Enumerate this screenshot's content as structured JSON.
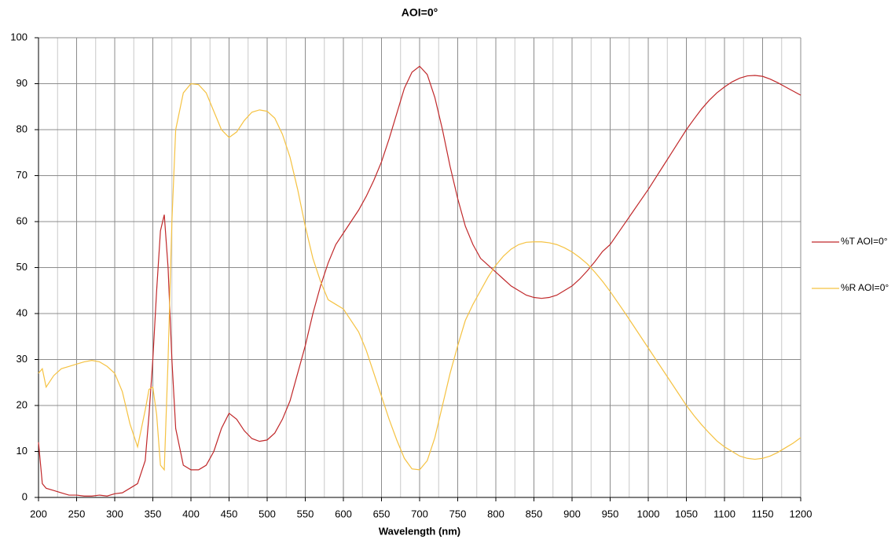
{
  "chart_data": {
    "type": "line",
    "title": "AOI=0°",
    "x_label": "Wavelength (nm)",
    "x": [
      200,
      205,
      210,
      220,
      230,
      240,
      250,
      260,
      270,
      280,
      290,
      300,
      310,
      320,
      330,
      340,
      345,
      350,
      355,
      360,
      365,
      370,
      375,
      380,
      390,
      400,
      410,
      420,
      430,
      440,
      450,
      460,
      470,
      480,
      490,
      500,
      510,
      520,
      530,
      540,
      550,
      560,
      570,
      580,
      590,
      600,
      610,
      620,
      630,
      640,
      650,
      660,
      670,
      680,
      690,
      700,
      710,
      720,
      730,
      740,
      750,
      760,
      770,
      780,
      790,
      800,
      810,
      820,
      830,
      840,
      850,
      860,
      870,
      880,
      890,
      900,
      910,
      920,
      930,
      940,
      950,
      960,
      970,
      980,
      990,
      1000,
      1010,
      1020,
      1030,
      1040,
      1050,
      1060,
      1070,
      1080,
      1090,
      1100,
      1110,
      1120,
      1130,
      1140,
      1150,
      1160,
      1170,
      1180,
      1190,
      1200
    ],
    "series": [
      {
        "name": "%T AOI=0°",
        "color": "#c0282a",
        "values": [
          12,
          3,
          2,
          1.5,
          1,
          0.5,
          0.5,
          0.3,
          0.3,
          0.5,
          0.3,
          0.8,
          1,
          2,
          3,
          8,
          18,
          30,
          45,
          58,
          61.5,
          50,
          30,
          15,
          7,
          6,
          6,
          7,
          10,
          15,
          18.3,
          17,
          14.5,
          12.8,
          12.2,
          12.5,
          14,
          17,
          21,
          27,
          33,
          40,
          46,
          51,
          55,
          57.5,
          60,
          62.5,
          65.5,
          69,
          73,
          78,
          83.5,
          89,
          92.5,
          93.8,
          92,
          87,
          80,
          72,
          65,
          59,
          55,
          52,
          50.5,
          49,
          47.5,
          46,
          45,
          44,
          43.5,
          43.3,
          43.5,
          44,
          45,
          46,
          47.5,
          49.3,
          51.3,
          53.5,
          55,
          57.4,
          59.8,
          62.2,
          64.6,
          67,
          69.6,
          72.2,
          74.8,
          77.4,
          80,
          82.3,
          84.5,
          86.4,
          88,
          89.3,
          90.4,
          91.2,
          91.7,
          91.8,
          91.6,
          91,
          90.2,
          89.3,
          88.4,
          87.5
        ]
      },
      {
        "name": "%R AOI=0°",
        "color": "#f5c242",
        "values": [
          27,
          28,
          24,
          26.5,
          28,
          28.5,
          29,
          29.5,
          29.8,
          29.5,
          28.5,
          27,
          23,
          16,
          11,
          19,
          23.5,
          24,
          18,
          7,
          6,
          30,
          60,
          80,
          88,
          90,
          89.8,
          88,
          84,
          80,
          78.3,
          79.5,
          82,
          83.8,
          84.3,
          84,
          82.5,
          79,
          74,
          67,
          59,
          52,
          47,
          43,
          42,
          41,
          38.5,
          36,
          32,
          27,
          22,
          17,
          12.5,
          8.5,
          6.2,
          6,
          8,
          13,
          20,
          27,
          33,
          38.5,
          42,
          45,
          48,
          50.5,
          52.5,
          54,
          55,
          55.5,
          55.6,
          55.6,
          55.4,
          55,
          54.3,
          53.4,
          52.2,
          50.8,
          49,
          47,
          44.8,
          42.4,
          40,
          37.5,
          35,
          32.5,
          30,
          27.5,
          25,
          22.5,
          20,
          17.8,
          15.8,
          14,
          12.3,
          11,
          10,
          9,
          8.5,
          8.3,
          8.5,
          9,
          9.8,
          10.8,
          11.8,
          13
        ]
      }
    ],
    "xlim": [
      200,
      1200
    ],
    "xticks": [
      200,
      250,
      300,
      350,
      400,
      450,
      500,
      550,
      600,
      650,
      700,
      750,
      800,
      850,
      900,
      950,
      1000,
      1050,
      1100,
      1150,
      1200
    ],
    "xminorticks": [
      225,
      275,
      325,
      375,
      425,
      475,
      525,
      575,
      625,
      675,
      725,
      775,
      825,
      875,
      925,
      975,
      1025,
      1075,
      1125,
      1175
    ],
    "ylim": [
      0,
      100
    ],
    "yticks": [
      0,
      10,
      20,
      30,
      40,
      50,
      60,
      70,
      80,
      90,
      100
    ],
    "grid": true,
    "legend": "right"
  }
}
